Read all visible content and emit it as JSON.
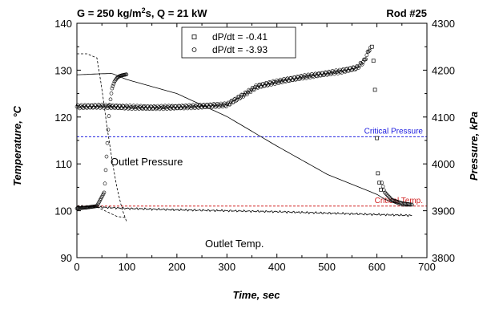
{
  "chart_data": {
    "type": "line",
    "title": "G = 250 kg/m²s, Q = 21 kW",
    "title_parts": {
      "pre": "G = 250 kg/m",
      "sup": "2",
      "post": "s, Q = 21 kW"
    },
    "rod_label": "Rod #25",
    "xlabel": "Time, sec",
    "ylabel_left": "Temperature, °C",
    "ylabel_right": "Pressure, kPa",
    "xlim": [
      0,
      700
    ],
    "ylim_left": [
      90,
      140
    ],
    "ylim_right": [
      3800,
      4300
    ],
    "xticks": [
      "0",
      "100",
      "200",
      "300",
      "400",
      "500",
      "600",
      "700"
    ],
    "yticks_left": [
      "90",
      "100",
      "110",
      "120",
      "130",
      "140"
    ],
    "yticks_right": [
      "3800",
      "3900",
      "4000",
      "4100",
      "4200",
      "4300"
    ],
    "grid": false,
    "legend_position": "top-center",
    "legend": [
      {
        "marker": "square",
        "label": "dP/dt = -0.41"
      },
      {
        "marker": "circle",
        "label": "dP/dt = -3.93"
      }
    ],
    "reference_lines": [
      {
        "label": "Critical Pressure",
        "axis": "right",
        "value": 4058,
        "color": "#2020e0"
      },
      {
        "label": "Critical Temp.",
        "axis": "left",
        "value": 101,
        "color": "#d02020"
      }
    ],
    "annotations": [
      "Outlet Pressure",
      "Outlet Temp."
    ],
    "series": [
      {
        "marker": "circle",
        "note": "wall temperature, dP/dt = -3.93",
        "axis": "left",
        "x": [
          0,
          20,
          40,
          55,
          60,
          65,
          70,
          75,
          80,
          85,
          90,
          95,
          100
        ],
        "y": [
          100.5,
          100.7,
          101.0,
          104,
          113,
          122,
          126,
          127.5,
          128.3,
          128.7,
          128.9,
          129.0,
          129.1
        ]
      },
      {
        "marker": "square",
        "note": "wall temperature, dP/dt = -0.41",
        "axis": "left",
        "x": [
          0,
          50,
          100,
          150,
          200,
          250,
          300,
          330,
          360,
          400,
          450,
          500,
          530,
          560,
          575,
          585,
          590,
          593,
          596,
          600,
          605,
          615,
          630,
          650,
          670
        ],
        "y": [
          122.2,
          122.3,
          122.1,
          122.0,
          122.1,
          122.3,
          122.6,
          124.5,
          126.5,
          127.5,
          128.5,
          129.3,
          129.8,
          130.5,
          132.0,
          134.5,
          135.0,
          132.0,
          125.8,
          115.5,
          108,
          104,
          102.3,
          101.6,
          101.3
        ]
      },
      {
        "line": "solid",
        "note": "outlet pressure, dP/dt = -0.41",
        "axis": "right",
        "x": [
          0,
          40,
          70,
          100,
          200,
          300,
          400,
          500,
          600,
          615,
          650,
          670
        ],
        "y": [
          4190,
          4192,
          4193,
          4180,
          4150,
          4101,
          4038,
          3978,
          3935,
          3925,
          3910,
          3910
        ]
      },
      {
        "line": "dashed",
        "note": "outlet pressure, dP/dt = -3.93",
        "axis": "right",
        "x": [
          0,
          20,
          40,
          50,
          60,
          70,
          80,
          90,
          100
        ],
        "y": [
          4235,
          4235,
          4226,
          4160,
          4080,
          4010,
          3950,
          3905,
          3875
        ]
      },
      {
        "line": "solid",
        "note": "outlet temperature, dP/dt = -0.41",
        "axis": "left",
        "x": [
          0,
          100,
          200,
          300,
          400,
          500,
          600,
          670
        ],
        "y": [
          101.0,
          100.5,
          100.2,
          100.0,
          99.8,
          99.5,
          99.2,
          99.0
        ]
      },
      {
        "line": "dashed",
        "note": "outlet temperature, dP/dt = -3.93",
        "axis": "left",
        "x": [
          0,
          40,
          60,
          80,
          100
        ],
        "y": [
          100.9,
          100.8,
          99.8,
          98.8,
          98.5
        ]
      }
    ]
  }
}
